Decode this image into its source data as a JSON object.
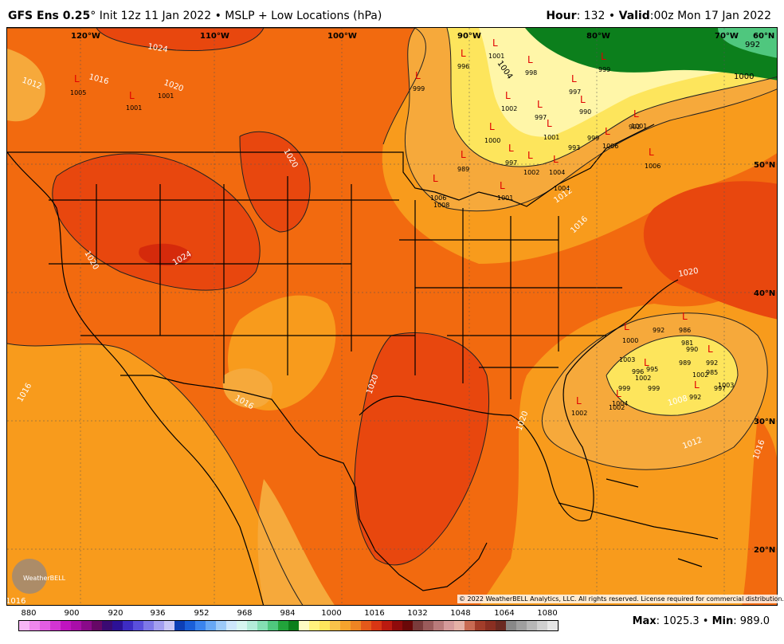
{
  "header": {
    "model": "GFS Ens 0.25",
    "degree": "°",
    "init": " Init 12z 11 Jan 2022",
    "sep": " • ",
    "field": "MSLP + Low Locations (hPa)",
    "hour_label": "Hour",
    "hour_value": ": 132",
    "valid_label": "Valid",
    "valid_value": ":00z Mon 17 Jan 2022"
  },
  "copyright": "© 2022 WeatherBELL Analytics, LLC. All rights reserved. License required for commercial distribution.",
  "longitudes": [
    "120°W",
    "110°W",
    "100°W",
    "90°W",
    "80°W",
    "70°W",
    "60°N"
  ],
  "latitudes": [
    "50°N",
    "40°N",
    "30°N",
    "20°N"
  ],
  "isobar_labels": [
    "1024",
    "1016",
    "1020",
    "1012",
    "1020",
    "1020",
    "1024",
    "1020",
    "1016",
    "1020",
    "1016",
    "1012",
    "1016",
    "1012",
    "1008",
    "1020",
    "1016",
    "1016",
    "1000",
    "992",
    "1004"
  ],
  "low_values": [
    "1005",
    "1001",
    "1001",
    "996",
    "999",
    "1001",
    "998",
    "1002",
    "997",
    "990",
    "999",
    "997",
    "1001",
    "1001",
    "1000",
    "992",
    "997",
    "1002",
    "1004",
    "1004",
    "1006",
    "1001",
    "1006",
    "1008",
    "1002",
    "999",
    "993",
    "1006",
    "1000",
    "992",
    "986",
    "989",
    "990",
    "981",
    "989",
    "992",
    "985",
    "1002",
    "1003",
    "997",
    "1003",
    "996",
    "1002",
    "995",
    "999",
    "999",
    "992",
    "1004",
    "1002",
    "1002"
  ],
  "logo_text": "WeatherBELL",
  "scale": {
    "labels": [
      "880",
      "900",
      "920",
      "936",
      "952",
      "968",
      "984",
      "1000",
      "1016",
      "1032",
      "1048",
      "1064",
      "1080"
    ],
    "colors": [
      "#f7b5f5",
      "#ee87ec",
      "#e25de2",
      "#d335d3",
      "#c014c0",
      "#a90ea9",
      "#8a0a8a",
      "#660866",
      "#3a0a72",
      "#2c1196",
      "#3d2cc4",
      "#5a4fdc",
      "#7e78e8",
      "#a39ff0",
      "#c8c6f6",
      "#0d3fb5",
      "#1a5fd8",
      "#3a84ee",
      "#67a8f5",
      "#9ccaf8",
      "#cde6fb",
      "#d6f5f0",
      "#b3ecd9",
      "#84dfb3",
      "#4fc77e",
      "#22a33b",
      "#0c7f1c",
      "#fdfbc4",
      "#fff27e",
      "#fde55c",
      "#f8c24a",
      "#f5a32d",
      "#ef8423",
      "#e5591a",
      "#d83614",
      "#bb1a10",
      "#8f0b0b",
      "#6a0808",
      "#7a3b3b",
      "#9a5b5b",
      "#b97b7b",
      "#d59b9b",
      "#e5b1a6",
      "#c96b53",
      "#a23d2a",
      "#8a2f22",
      "#6b2a22",
      "#888888",
      "#9f9f9f",
      "#b7b7b7",
      "#cfcfcf",
      "#e6e6e6"
    ]
  },
  "stats": {
    "max_label": "Max",
    "max_value": ": 1025.3",
    "sep": " • ",
    "min_label": "Min",
    "min_value": ": 989.0"
  }
}
